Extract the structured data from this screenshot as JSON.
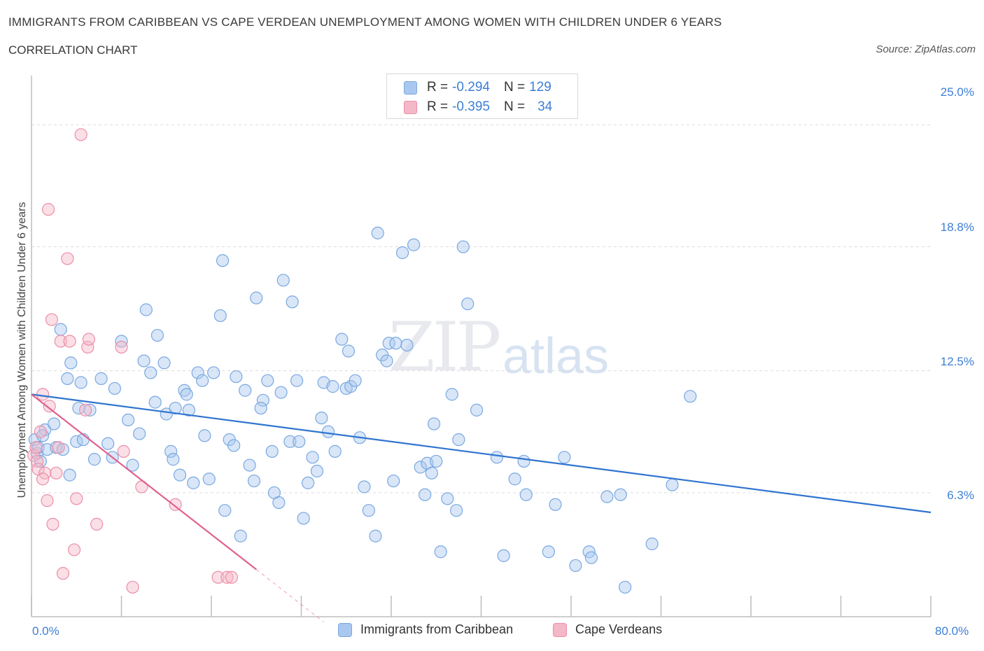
{
  "header": {
    "title": "IMMIGRANTS FROM CARIBBEAN VS CAPE VERDEAN UNEMPLOYMENT AMONG WOMEN WITH CHILDREN UNDER 6 YEARS",
    "subtitle": "CORRELATION CHART",
    "source": "Source: ZipAtlas.com"
  },
  "watermark": {
    "zip": "ZIP",
    "atlas": "atlas"
  },
  "legend_top": {
    "rows": [
      {
        "r_label": "R =",
        "r_value": "-0.294",
        "n_label": "N =",
        "n_value": "129",
        "color": "#a9c8f0"
      },
      {
        "r_label": "R =",
        "r_value": "-0.395",
        "n_label": "N =",
        "n_value": "34",
        "color": "#f5b8c8"
      }
    ]
  },
  "legend_bottom": {
    "items": [
      {
        "label": "Immigrants from Caribbean",
        "color": "#a9c8f0"
      },
      {
        "label": "Cape Verdeans",
        "color": "#f5b8c8"
      }
    ]
  },
  "chart_data": {
    "type": "scatter",
    "title": "IMMIGRANTS FROM CARIBBEAN VS CAPE VERDEAN UNEMPLOYMENT AMONG WOMEN WITH CHILDREN UNDER 6 YEARS",
    "xlabel": "",
    "ylabel": "Unemployment Among Women with Children Under 6 years",
    "xlim": [
      0,
      80
    ],
    "ylim": [
      0,
      27.5
    ],
    "x_tick_labels": [
      "0.0%",
      "80.0%"
    ],
    "y_ticks": [
      6.3,
      12.5,
      18.8,
      25.0
    ],
    "y_tick_labels": [
      "6.3%",
      "12.5%",
      "18.8%",
      "25.0%"
    ],
    "grid": true,
    "legend": "top-center",
    "series": [
      {
        "name": "Immigrants from Caribbean",
        "color": "#a9c8f0",
        "stroke": "#7aa8e0",
        "trend": {
          "x": [
            0,
            80
          ],
          "y": [
            11.3,
            5.3
          ],
          "color": "#2f74d0"
        },
        "points": [
          [
            0.3,
            9.0
          ],
          [
            0.5,
            8.3
          ],
          [
            0.6,
            8.6
          ],
          [
            0.8,
            7.9
          ],
          [
            1.2,
            9.5
          ],
          [
            1.0,
            9.2
          ],
          [
            1.4,
            8.5
          ],
          [
            2.0,
            9.8
          ],
          [
            2.2,
            8.6
          ],
          [
            2.8,
            8.5
          ],
          [
            2.6,
            14.6
          ],
          [
            3.4,
            7.2
          ],
          [
            3.2,
            12.1
          ],
          [
            3.5,
            12.9
          ],
          [
            4.2,
            10.6
          ],
          [
            4.0,
            8.9
          ],
          [
            4.6,
            9.0
          ],
          [
            4.4,
            11.9
          ],
          [
            5.2,
            10.5
          ],
          [
            5.6,
            8.0
          ],
          [
            6.2,
            12.1
          ],
          [
            6.8,
            8.8
          ],
          [
            7.2,
            8.1
          ],
          [
            7.4,
            11.6
          ],
          [
            8.0,
            14.0
          ],
          [
            8.6,
            10.0
          ],
          [
            9.0,
            7.7
          ],
          [
            9.6,
            9.3
          ],
          [
            10.0,
            13.0
          ],
          [
            10.2,
            15.6
          ],
          [
            10.6,
            12.4
          ],
          [
            11.0,
            10.9
          ],
          [
            11.2,
            14.3
          ],
          [
            11.8,
            12.9
          ],
          [
            12.0,
            10.3
          ],
          [
            12.4,
            8.4
          ],
          [
            12.6,
            8.0
          ],
          [
            12.8,
            10.6
          ],
          [
            13.2,
            7.2
          ],
          [
            13.6,
            11.5
          ],
          [
            14.0,
            10.5
          ],
          [
            13.8,
            11.3
          ],
          [
            14.4,
            6.8
          ],
          [
            14.8,
            12.4
          ],
          [
            15.2,
            12.0
          ],
          [
            15.4,
            9.2
          ],
          [
            15.8,
            7.0
          ],
          [
            16.2,
            12.4
          ],
          [
            16.8,
            15.3
          ],
          [
            17.2,
            5.4
          ],
          [
            17.6,
            9.0
          ],
          [
            18.0,
            8.7
          ],
          [
            18.2,
            12.2
          ],
          [
            17.0,
            18.1
          ],
          [
            18.6,
            4.1
          ],
          [
            19.0,
            11.5
          ],
          [
            19.4,
            7.7
          ],
          [
            19.8,
            6.9
          ],
          [
            20.0,
            16.2
          ],
          [
            20.6,
            11.0
          ],
          [
            20.4,
            10.6
          ],
          [
            21.0,
            12.0
          ],
          [
            21.4,
            8.4
          ],
          [
            21.6,
            6.3
          ],
          [
            22.0,
            5.8
          ],
          [
            22.2,
            11.4
          ],
          [
            22.4,
            17.1
          ],
          [
            23.0,
            8.9
          ],
          [
            23.2,
            16.0
          ],
          [
            23.6,
            12.0
          ],
          [
            23.8,
            8.9
          ],
          [
            24.2,
            5.0
          ],
          [
            24.6,
            6.8
          ],
          [
            25.0,
            8.1
          ],
          [
            25.4,
            7.4
          ],
          [
            25.8,
            10.1
          ],
          [
            26.0,
            11.9
          ],
          [
            26.4,
            9.4
          ],
          [
            26.8,
            11.7
          ],
          [
            27.0,
            8.4
          ],
          [
            27.6,
            14.1
          ],
          [
            28.0,
            11.6
          ],
          [
            28.2,
            13.5
          ],
          [
            28.4,
            11.7
          ],
          [
            28.8,
            12.0
          ],
          [
            29.2,
            9.1
          ],
          [
            29.6,
            6.6
          ],
          [
            30.0,
            5.4
          ],
          [
            30.6,
            4.1
          ],
          [
            30.8,
            19.5
          ],
          [
            31.2,
            13.3
          ],
          [
            31.6,
            13.0
          ],
          [
            31.8,
            13.9
          ],
          [
            32.4,
            13.9
          ],
          [
            32.2,
            6.9
          ],
          [
            33.0,
            18.5
          ],
          [
            33.4,
            13.8
          ],
          [
            34.0,
            18.9
          ],
          [
            34.6,
            7.6
          ],
          [
            35.0,
            6.2
          ],
          [
            35.2,
            7.8
          ],
          [
            35.6,
            7.3
          ],
          [
            35.8,
            9.8
          ],
          [
            36.0,
            7.9
          ],
          [
            36.4,
            3.3
          ],
          [
            37.0,
            6.0
          ],
          [
            37.4,
            11.3
          ],
          [
            37.8,
            5.4
          ],
          [
            38.0,
            9.0
          ],
          [
            38.4,
            18.8
          ],
          [
            38.8,
            15.9
          ],
          [
            39.6,
            10.5
          ],
          [
            41.4,
            8.1
          ],
          [
            42.0,
            3.1
          ],
          [
            43.0,
            7.0
          ],
          [
            43.8,
            7.9
          ],
          [
            44.0,
            6.2
          ],
          [
            46.0,
            3.3
          ],
          [
            46.6,
            5.7
          ],
          [
            47.4,
            8.1
          ],
          [
            48.4,
            2.6
          ],
          [
            49.6,
            3.3
          ],
          [
            49.8,
            3.0
          ],
          [
            51.2,
            6.1
          ],
          [
            52.4,
            6.2
          ],
          [
            55.2,
            3.7
          ],
          [
            58.6,
            11.2
          ],
          [
            57.0,
            6.7
          ],
          [
            52.8,
            1.5
          ]
        ]
      },
      {
        "name": "Cape Verdeans",
        "color": "#f5b8c8",
        "stroke": "#ec8fa8",
        "trend": {
          "x": [
            0,
            20
          ],
          "y": [
            11.3,
            2.4
          ],
          "color": "#e0608e",
          "dash_extend_to_x": 26
        },
        "points": [
          [
            0.2,
            8.2
          ],
          [
            0.4,
            8.6
          ],
          [
            0.5,
            7.9
          ],
          [
            0.6,
            7.5
          ],
          [
            0.8,
            9.4
          ],
          [
            1.0,
            11.3
          ],
          [
            1.2,
            7.3
          ],
          [
            1.4,
            5.9
          ],
          [
            1.6,
            10.7
          ],
          [
            1.8,
            15.1
          ],
          [
            1.5,
            20.7
          ],
          [
            1.9,
            4.7
          ],
          [
            2.2,
            7.3
          ],
          [
            2.4,
            8.6
          ],
          [
            2.8,
            2.2
          ],
          [
            2.6,
            14.0
          ],
          [
            3.2,
            18.2
          ],
          [
            3.4,
            14.0
          ],
          [
            3.8,
            3.4
          ],
          [
            4.0,
            6.0
          ],
          [
            4.4,
            24.5
          ],
          [
            4.8,
            10.5
          ],
          [
            5.0,
            13.7
          ],
          [
            5.1,
            14.1
          ],
          [
            5.8,
            4.7
          ],
          [
            8.0,
            13.7
          ],
          [
            8.2,
            8.4
          ],
          [
            9.0,
            1.5
          ],
          [
            9.8,
            6.6
          ],
          [
            12.8,
            5.7
          ],
          [
            16.6,
            2.0
          ],
          [
            17.4,
            2.0
          ],
          [
            17.8,
            2.0
          ],
          [
            1.0,
            7.0
          ]
        ]
      }
    ]
  }
}
